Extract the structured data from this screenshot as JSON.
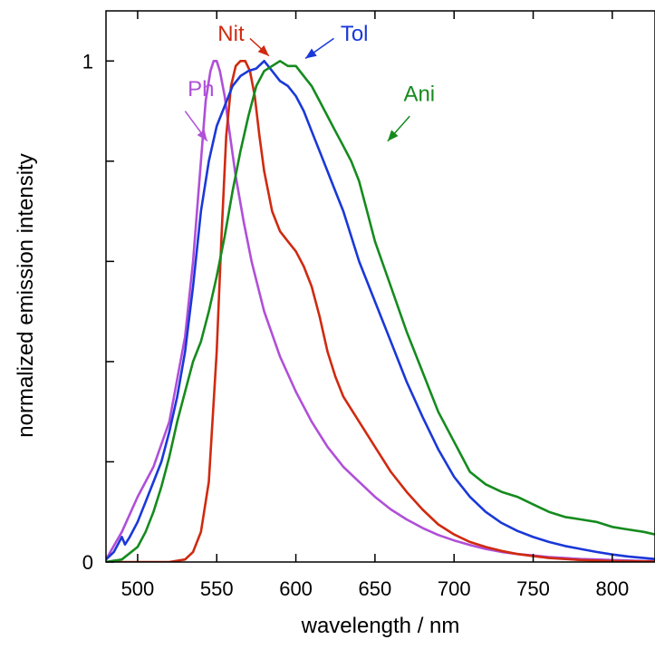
{
  "chart_data": {
    "type": "line",
    "xlabel": "wavelength / nm",
    "ylabel": "normalized emission intensity",
    "xlim": [
      480,
      827
    ],
    "ylim": [
      0,
      1.1
    ],
    "xticks": [
      500,
      550,
      600,
      650,
      700,
      750,
      800
    ],
    "xtick_labels": [
      "500",
      "550",
      "600",
      "650",
      "700",
      "750",
      "800"
    ],
    "yticks": [
      0,
      0.2,
      0.4,
      0.6,
      0.8,
      1.0
    ],
    "ytick_labels": [
      "0",
      "",
      "",
      "",
      "",
      "1"
    ],
    "grid": false,
    "series": [
      {
        "name": "Ph",
        "color": "#b04fd8",
        "label_pos": [
          540,
          0.93
        ],
        "arrow": [
          [
            530,
            0.9
          ],
          [
            544,
            0.84
          ]
        ],
        "x": [
          480,
          490,
          500,
          510,
          520,
          530,
          535,
          540,
          543,
          546,
          548,
          550,
          552,
          555,
          558,
          562,
          567,
          572,
          580,
          590,
          600,
          610,
          620,
          630,
          640,
          650,
          660,
          670,
          680,
          690,
          700,
          710,
          720,
          730,
          740,
          750,
          760,
          770,
          780,
          790,
          800,
          810,
          820,
          827
        ],
        "y": [
          0.005,
          0.06,
          0.13,
          0.19,
          0.28,
          0.45,
          0.6,
          0.8,
          0.92,
          0.98,
          1.0,
          1.0,
          0.98,
          0.93,
          0.86,
          0.77,
          0.68,
          0.6,
          0.5,
          0.41,
          0.34,
          0.28,
          0.23,
          0.19,
          0.16,
          0.13,
          0.105,
          0.085,
          0.068,
          0.054,
          0.043,
          0.034,
          0.026,
          0.02,
          0.016,
          0.013,
          0.01,
          0.008,
          0.006,
          0.005,
          0.004,
          0.003,
          0.002,
          0.002
        ]
      },
      {
        "name": "Nit",
        "color": "#d02a10",
        "label_pos": [
          559,
          1.04
        ],
        "arrow": [
          [
            571,
            1.045
          ],
          [
            583,
            1.01
          ]
        ],
        "x": [
          480,
          520,
          530,
          535,
          540,
          545,
          550,
          553,
          556,
          559,
          562,
          565,
          568,
          571,
          574,
          577,
          580,
          585,
          590,
          595,
          600,
          605,
          610,
          615,
          620,
          625,
          630,
          640,
          650,
          660,
          670,
          680,
          690,
          700,
          710,
          720,
          730,
          740,
          750,
          760,
          780,
          800,
          827
        ],
        "y": [
          0.0,
          0.0,
          0.005,
          0.02,
          0.06,
          0.16,
          0.42,
          0.65,
          0.85,
          0.95,
          0.99,
          1.0,
          1.0,
          0.98,
          0.93,
          0.85,
          0.78,
          0.7,
          0.66,
          0.64,
          0.62,
          0.59,
          0.55,
          0.49,
          0.42,
          0.37,
          0.33,
          0.28,
          0.23,
          0.18,
          0.14,
          0.105,
          0.075,
          0.055,
          0.04,
          0.03,
          0.022,
          0.016,
          0.012,
          0.008,
          0.004,
          0.002,
          0.001
        ]
      },
      {
        "name": "Tol",
        "color": "#1a38d8",
        "label_pos": [
          637,
          1.04
        ],
        "arrow": [
          [
            624,
            1.045
          ],
          [
            606,
            1.005
          ]
        ],
        "x": [
          480,
          485,
          490,
          492,
          495,
          500,
          505,
          510,
          515,
          520,
          525,
          530,
          535,
          540,
          545,
          550,
          555,
          560,
          565,
          570,
          575,
          580,
          585,
          590,
          595,
          600,
          605,
          610,
          615,
          620,
          625,
          630,
          640,
          650,
          660,
          670,
          680,
          690,
          700,
          710,
          720,
          730,
          740,
          750,
          760,
          770,
          780,
          790,
          800,
          810,
          820,
          827
        ],
        "y": [
          0.005,
          0.02,
          0.05,
          0.035,
          0.05,
          0.08,
          0.12,
          0.16,
          0.2,
          0.26,
          0.33,
          0.42,
          0.55,
          0.7,
          0.8,
          0.87,
          0.91,
          0.95,
          0.97,
          0.98,
          0.985,
          1.0,
          0.98,
          0.96,
          0.95,
          0.93,
          0.9,
          0.86,
          0.82,
          0.78,
          0.74,
          0.7,
          0.6,
          0.52,
          0.44,
          0.36,
          0.29,
          0.225,
          0.17,
          0.13,
          0.1,
          0.078,
          0.062,
          0.05,
          0.04,
          0.032,
          0.026,
          0.02,
          0.015,
          0.011,
          0.008,
          0.006
        ]
      },
      {
        "name": "Ani",
        "color": "#158b1e",
        "label_pos": [
          678,
          0.92
        ],
        "arrow": [
          [
            672,
            0.89
          ],
          [
            658,
            0.84
          ]
        ],
        "x": [
          480,
          490,
          500,
          505,
          510,
          515,
          520,
          525,
          530,
          535,
          540,
          545,
          550,
          555,
          560,
          565,
          570,
          575,
          580,
          585,
          590,
          595,
          600,
          605,
          610,
          615,
          620,
          625,
          630,
          635,
          640,
          645,
          650,
          660,
          670,
          680,
          690,
          700,
          710,
          720,
          730,
          740,
          750,
          760,
          770,
          780,
          790,
          800,
          810,
          820,
          827
        ],
        "y": [
          0.0,
          0.005,
          0.03,
          0.06,
          0.1,
          0.15,
          0.21,
          0.28,
          0.34,
          0.4,
          0.44,
          0.5,
          0.57,
          0.65,
          0.74,
          0.82,
          0.89,
          0.95,
          0.98,
          0.99,
          1.0,
          0.99,
          0.99,
          0.97,
          0.95,
          0.92,
          0.89,
          0.86,
          0.83,
          0.8,
          0.76,
          0.7,
          0.64,
          0.55,
          0.46,
          0.38,
          0.3,
          0.24,
          0.18,
          0.155,
          0.14,
          0.13,
          0.115,
          0.1,
          0.09,
          0.085,
          0.08,
          0.07,
          0.065,
          0.06,
          0.055
        ]
      }
    ]
  }
}
